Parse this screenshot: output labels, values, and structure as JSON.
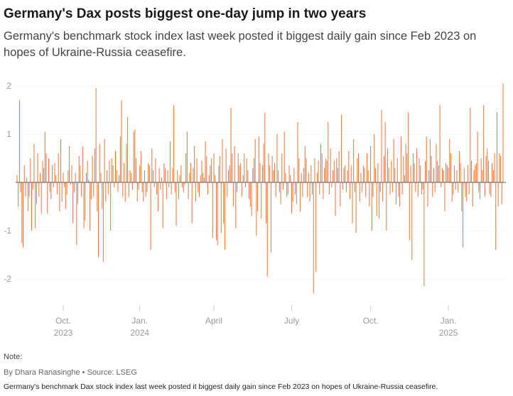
{
  "header": {
    "title": "Germany's Dax posts biggest one-day jump in two years",
    "subtitle": "Germany's benchmark stock index last week posted it biggest daily gain since Feb 2023 on hopes of Ukraine-Russia ceasefire."
  },
  "footer": {
    "note": "Note:",
    "byline": "By Dhara Ranasinghe • Source: LSEG",
    "caption": "Germany's benchmark Dax stock index last week posted it biggest daily gain since Feb 2023 on hopes of Ukraine-Russia ceasefire."
  },
  "colors": {
    "bar": "#e8763a",
    "axis": "#555555",
    "grid": "#e0e0e0",
    "text": "#999999"
  },
  "chart_data": {
    "type": "bar",
    "title": "",
    "xlabel": "",
    "ylabel": "",
    "ylim": [
      -2.5,
      2.2
    ],
    "yticks": [
      {
        "value": 2,
        "label": "2"
      },
      {
        "value": 1,
        "label": "1"
      },
      {
        "value": -1,
        "label": "-1"
      },
      {
        "value": -2,
        "label": "-2"
      }
    ],
    "xticks": [
      {
        "index": 38,
        "label": [
          "Oct.",
          "2023"
        ]
      },
      {
        "index": 101,
        "label": [
          "Jan.",
          "2024"
        ]
      },
      {
        "index": 162,
        "label": [
          "April",
          ""
        ]
      },
      {
        "index": 226,
        "label": [
          "July",
          ""
        ]
      },
      {
        "index": 291,
        "label": [
          "Oct.",
          ""
        ]
      },
      {
        "index": 355,
        "label": [
          "Jan.",
          "2025"
        ]
      }
    ],
    "series": [
      {
        "values": [
          0.15,
          -0.5,
          1.7,
          -0.2,
          -1.25,
          -1.35,
          0.35,
          -0.3,
          0.1,
          -0.6,
          -0.3,
          0.5,
          -1.0,
          -0.15,
          0.8,
          -0.95,
          -0.45,
          0.6,
          -0.3,
          0.2,
          -0.65,
          0.45,
          0.3,
          1.05,
          0.6,
          -0.65,
          0.5,
          -0.2,
          -0.35,
          0.35,
          -0.1,
          0.4,
          0.15,
          -0.25,
          0.6,
          -0.6,
          0.9,
          -0.4,
          0.2,
          -0.1,
          -0.55,
          -0.25,
          0.25,
          0.75,
          -0.05,
          0.35,
          -0.85,
          -0.2,
          0.2,
          -1.3,
          -0.45,
          0.55,
          0.35,
          -0.3,
          0.75,
          -0.95,
          -0.8,
          0.2,
          0.45,
          0.05,
          -1.0,
          -0.35,
          0.55,
          -0.3,
          0.7,
          1.95,
          -0.6,
          -1.55,
          0.8,
          0.2,
          -0.55,
          -1.65,
          0.9,
          -0.4,
          0.25,
          -0.25,
          0.45,
          -1.0,
          0.5,
          0.35,
          -0.1,
          0.65,
          0.25,
          -0.2,
          0.15,
          0.95,
          1.7,
          -0.3,
          0.4,
          -0.4,
          0.8,
          1.35,
          -0.3,
          0.25,
          0.2,
          -0.15,
          1.05,
          1.1,
          0.5,
          -0.4,
          -0.15,
          0.35,
          0.65,
          -0.2,
          -0.4,
          0.25,
          -0.3,
          -0.2,
          0.4,
          0.35,
          -1.4,
          0.7,
          0.25,
          -0.1,
          0.5,
          -0.25,
          -0.6,
          0.3,
          -0.15,
          0.1,
          -0.95,
          0.4,
          0.3,
          -0.35,
          0.25,
          -0.1,
          0.85,
          -0.25,
          0.3,
          1.6,
          -0.2,
          -0.9,
          0.25,
          -0.35,
          0.15,
          0.35,
          -0.1,
          -0.2,
          -0.05,
          0.6,
          1.05,
          -0.35,
          0.2,
          0.4,
          -0.85,
          0.3,
          0.75,
          -0.4,
          0.5,
          -0.2,
          -0.3,
          0.15,
          0.45,
          0.2,
          0.1,
          0.85,
          0.55,
          -0.25,
          0.15,
          0.35,
          0.5,
          -1.15,
          0.6,
          0.15,
          -1.2,
          -1.3,
          0.35,
          0.55,
          -1.05,
          0.9,
          -0.85,
          -1.4,
          0.7,
          -0.3,
          0.25,
          0.35,
          1.55,
          0.6,
          -0.5,
          0.75,
          -0.95,
          -0.2,
          0.6,
          0.35,
          0.4,
          -0.3,
          0.15,
          0.6,
          -0.1,
          0.5,
          0.25,
          -0.35,
          -0.5,
          -0.7,
          0.3,
          0.5,
          0.9,
          -1.1,
          -0.6,
          0.95,
          0.4,
          -0.75,
          0.35,
          0.8,
          1.45,
          -0.85,
          -1.95,
          0.6,
          0.35,
          -1.45,
          0.55,
          0.25,
          0.4,
          -0.3,
          1.0,
          0.25,
          -0.2,
          -0.45,
          0.6,
          -0.15,
          1.05,
          0.2,
          -0.3,
          -0.25,
          0.35,
          0.15,
          -0.65,
          -0.4,
          0.3,
          -0.25,
          -0.45,
          1.25,
          0.5,
          -0.6,
          0.2,
          -0.3,
          0.3,
          0.75,
          0.5,
          -0.3,
          0.2,
          -0.4,
          0.35,
          -0.25,
          -2.3,
          0.5,
          -1.85,
          0.2,
          0.45,
          -0.25,
          0.8,
          0.6,
          -0.35,
          0.3,
          0.5,
          0.45,
          1.25,
          -0.25,
          0.7,
          -0.1,
          0.25,
          0.45,
          -0.7,
          0.5,
          0.3,
          0.65,
          -0.5,
          1.4,
          -0.15,
          0.3,
          0.35,
          -0.2,
          0.25,
          0.65,
          -0.35,
          0.35,
          -0.85,
          0.9,
          -0.2,
          -1.05,
          0.5,
          0.6,
          -0.4,
          0.2,
          -0.2,
          0.35,
          0.3,
          -0.3,
          0.6,
          0.25,
          -0.5,
          0.75,
          -1.0,
          -0.3,
          1.0,
          0.3,
          -0.7,
          0.4,
          -0.75,
          -0.2,
          1.5,
          -0.4,
          0.55,
          1.25,
          -1.0,
          0.7,
          0.3,
          -0.25,
          0.45,
          -0.2,
          0.9,
          0.3,
          -0.45,
          0.5,
          -0.3,
          -0.5,
          0.95,
          -0.25,
          0.55,
          0.15,
          0.8,
          0.6,
          1.45,
          -1.2,
          0.35,
          -1.6,
          0.6,
          0.4,
          -0.2,
          0.7,
          -0.3,
          0.5,
          0.35,
          -0.25,
          -0.15,
          -2.15,
          0.45,
          0.95,
          -0.5,
          0.25,
          0.9,
          0.55,
          -0.3,
          0.3,
          -0.2,
          0.8,
          0.45,
          0.35,
          1.6,
          -0.1,
          0.3,
          0.25,
          -0.6,
          0.4,
          0.35,
          0.3,
          0.9,
          0.6,
          -0.4,
          -0.25,
          0.35,
          -0.15,
          0.25,
          -0.2,
          0.65,
          0.4,
          -0.6,
          -1.35,
          0.3,
          -0.3,
          -0.4,
          0.35,
          -0.25,
          1.55,
          0.45,
          -0.5,
          0.25,
          0.35,
          0.4,
          1.05,
          -0.2,
          -0.35,
          0.5,
          0.25,
          1.6,
          -0.3,
          0.55,
          0.7,
          0.45,
          -0.25,
          -0.3,
          0.4,
          0.25,
          0.6,
          -1.4,
          1.45,
          -0.5,
          0.6,
          0.55,
          -0.45,
          2.05
        ]
      }
    ]
  }
}
